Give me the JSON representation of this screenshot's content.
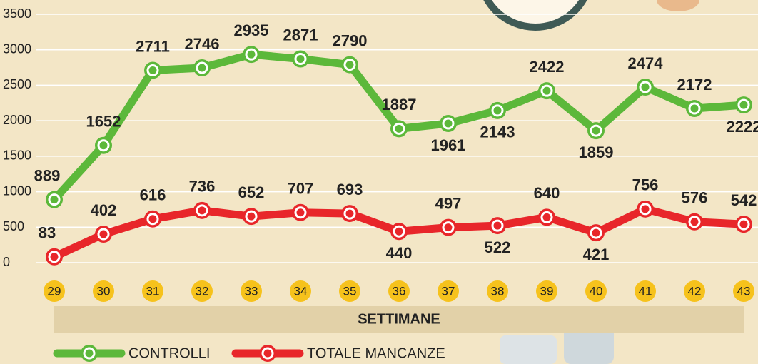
{
  "chart_data": {
    "type": "line",
    "categories": [
      "29",
      "30",
      "31",
      "32",
      "33",
      "34",
      "35",
      "36",
      "37",
      "38",
      "39",
      "40",
      "41",
      "42",
      "43"
    ],
    "series": [
      {
        "name": "CONTROLLI",
        "color": "#5cb83a",
        "values": [
          889,
          1652,
          2711,
          2746,
          2935,
          2871,
          2790,
          1887,
          1961,
          2143,
          2422,
          1859,
          2474,
          2172,
          2222
        ]
      },
      {
        "name": "TOTALE MANCANZE",
        "color": "#e8262a",
        "values": [
          83,
          402,
          616,
          736,
          652,
          707,
          693,
          440,
          497,
          522,
          640,
          421,
          756,
          576,
          542
        ]
      }
    ],
    "x_label": "SETTIMANE",
    "ylim": [
      0,
      3500
    ],
    "yticks": [
      0,
      500,
      1000,
      1500,
      2000,
      2500,
      3000,
      3500
    ],
    "grid": true
  }
}
